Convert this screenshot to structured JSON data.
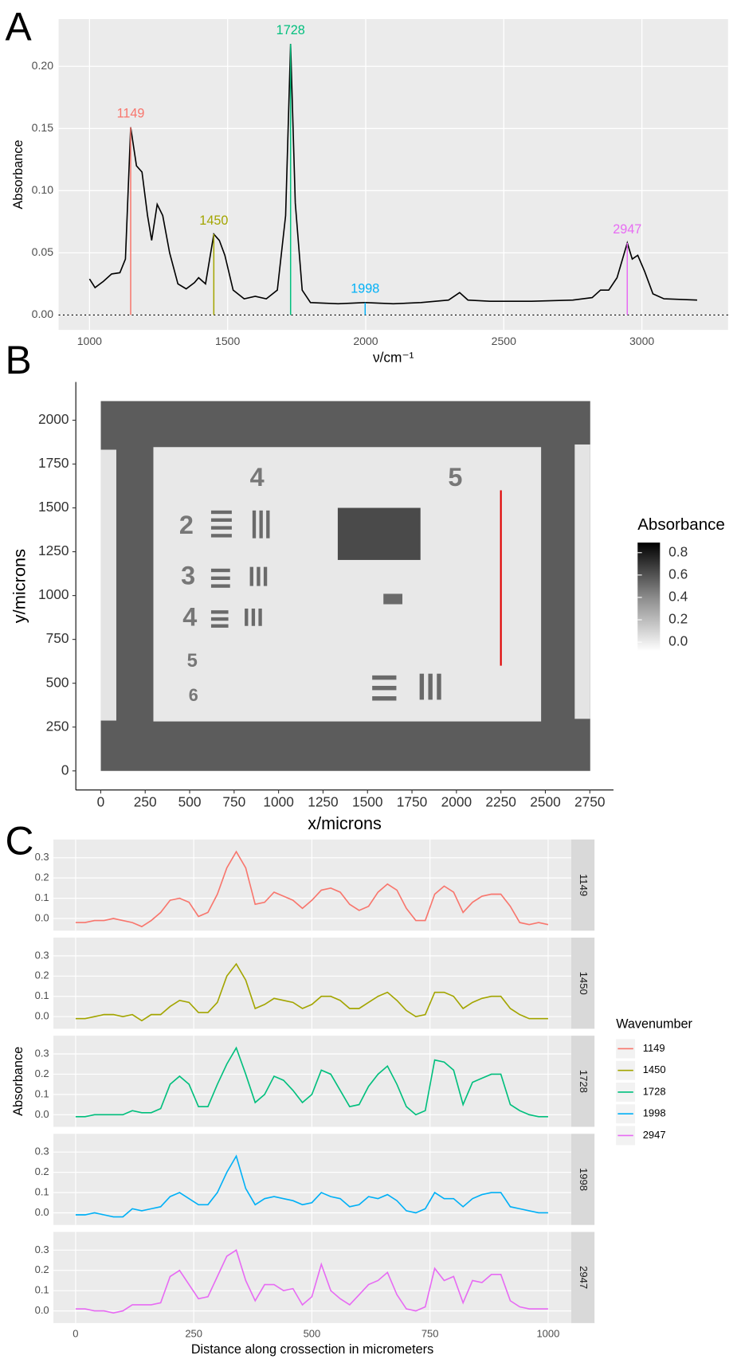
{
  "chart_data": [
    {
      "type": "line",
      "panel_label": "A",
      "x": [
        1000,
        1020,
        1050,
        1080,
        1110,
        1130,
        1149,
        1170,
        1190,
        1210,
        1225,
        1245,
        1265,
        1290,
        1320,
        1350,
        1380,
        1395,
        1420,
        1450,
        1470,
        1490,
        1520,
        1560,
        1600,
        1640,
        1680,
        1710,
        1728,
        1745,
        1770,
        1800,
        1900,
        1998,
        2100,
        2200,
        2300,
        2340,
        2370,
        2450,
        2600,
        2750,
        2820,
        2850,
        2880,
        2910,
        2947,
        2965,
        2985,
        3010,
        3040,
        3080,
        3200
      ],
      "values": [
        0.029,
        0.022,
        0.027,
        0.033,
        0.034,
        0.045,
        0.151,
        0.12,
        0.115,
        0.08,
        0.06,
        0.089,
        0.08,
        0.05,
        0.025,
        0.021,
        0.026,
        0.03,
        0.025,
        0.065,
        0.06,
        0.048,
        0.02,
        0.013,
        0.015,
        0.013,
        0.02,
        0.08,
        0.218,
        0.09,
        0.02,
        0.01,
        0.009,
        0.01,
        0.009,
        0.01,
        0.012,
        0.018,
        0.012,
        0.011,
        0.011,
        0.012,
        0.014,
        0.02,
        0.02,
        0.03,
        0.058,
        0.045,
        0.048,
        0.035,
        0.017,
        0.013,
        0.012
      ],
      "color": "#000000",
      "xlim": [
        888,
        3312
      ],
      "ylim": [
        -0.012,
        0.238
      ],
      "xticks": [
        1000,
        1500,
        2000,
        2500,
        3000
      ],
      "yticks": [
        {
          "value": 0,
          "label": "0.00"
        },
        {
          "value": 0.05,
          "label": "0.05"
        },
        {
          "value": 0.1,
          "label": "0.10"
        },
        {
          "value": 0.15,
          "label": "0.15"
        },
        {
          "value": 0.2,
          "label": "0.20"
        }
      ],
      "xlabel": "ν/cm⁻¹",
      "ylabel": "Absorbance",
      "grid": true,
      "peaks": [
        {
          "x": 1149,
          "y": 0.151,
          "color": "#f8766d"
        },
        {
          "x": 1450,
          "y": 0.065,
          "color": "#a3a500"
        },
        {
          "x": 1728,
          "y": 0.218,
          "color": "#00bf7d"
        },
        {
          "x": 1998,
          "y": 0.01,
          "color": "#00b0f6"
        },
        {
          "x": 2947,
          "y": 0.058,
          "color": "#e76bf3"
        }
      ]
    },
    {
      "type": "heatmap",
      "panel_label": "B",
      "xlim": [
        -140,
        2883
      ],
      "ylim": [
        -109,
        2218
      ],
      "xticks": [
        0,
        250,
        500,
        750,
        1000,
        1250,
        1500,
        1750,
        2000,
        2250,
        2500,
        2750
      ],
      "yticks": [
        0,
        250,
        500,
        750,
        1000,
        1250,
        1500,
        1750,
        2000
      ],
      "xlabel": "x/microns",
      "ylabel": "y/microns",
      "colorbar": {
        "title": "Absorbance",
        "lim": [
          -0.08,
          0.89
        ],
        "ticks": [
          {
            "value": 0,
            "label": "0.0"
          },
          {
            "value": 0.2,
            "label": "0.2"
          },
          {
            "value": 0.4,
            "label": "0.4"
          },
          {
            "value": 0.6,
            "label": "0.6"
          },
          {
            "value": 0.8,
            "label": "0.8"
          }
        ]
      },
      "transect": {
        "x": 2250,
        "y": [
          600,
          1600
        ],
        "color": "#e00000"
      }
    },
    {
      "type": "line",
      "panel_label": "C",
      "x": [
        0,
        20,
        40,
        60,
        80,
        100,
        120,
        140,
        160,
        180,
        200,
        220,
        240,
        260,
        280,
        300,
        320,
        340,
        360,
        380,
        400,
        420,
        440,
        460,
        480,
        500,
        520,
        540,
        560,
        580,
        600,
        620,
        640,
        660,
        680,
        700,
        720,
        740,
        760,
        780,
        800,
        820,
        840,
        860,
        880,
        900,
        920,
        940,
        960,
        980,
        1000
      ],
      "series": [
        {
          "name": "1149",
          "color": "#f8766d",
          "values": [
            -0.02,
            -0.02,
            -0.01,
            -0.01,
            0,
            -0.01,
            -0.02,
            -0.04,
            -0.01,
            0.03,
            0.09,
            0.1,
            0.08,
            0.01,
            0.03,
            0.12,
            0.25,
            0.33,
            0.25,
            0.07,
            0.08,
            0.13,
            0.11,
            0.09,
            0.05,
            0.09,
            0.14,
            0.15,
            0.13,
            0.07,
            0.04,
            0.06,
            0.13,
            0.17,
            0.14,
            0.05,
            -0.01,
            -0.01,
            0.12,
            0.16,
            0.13,
            0.03,
            0.08,
            0.11,
            0.12,
            0.12,
            0.06,
            -0.02,
            -0.03,
            -0.02,
            -0.03
          ]
        },
        {
          "name": "1450",
          "color": "#a3a500",
          "values": [
            -0.01,
            -0.01,
            0,
            0.01,
            0.01,
            0,
            0.01,
            -0.02,
            0.01,
            0.01,
            0.05,
            0.08,
            0.07,
            0.02,
            0.02,
            0.07,
            0.2,
            0.26,
            0.18,
            0.04,
            0.06,
            0.09,
            0.08,
            0.07,
            0.04,
            0.06,
            0.1,
            0.1,
            0.08,
            0.04,
            0.04,
            0.07,
            0.1,
            0.12,
            0.08,
            0.03,
            0,
            0.01,
            0.12,
            0.12,
            0.1,
            0.04,
            0.07,
            0.09,
            0.1,
            0.1,
            0.04,
            0.01,
            -0.01,
            -0.01,
            -0.01
          ]
        },
        {
          "name": "1728",
          "color": "#00bf7d",
          "values": [
            -0.01,
            -0.01,
            0,
            0,
            0,
            0,
            0.02,
            0.01,
            0.01,
            0.03,
            0.15,
            0.19,
            0.15,
            0.04,
            0.04,
            0.15,
            0.25,
            0.33,
            0.2,
            0.06,
            0.1,
            0.19,
            0.17,
            0.12,
            0.06,
            0.1,
            0.22,
            0.2,
            0.12,
            0.04,
            0.05,
            0.14,
            0.2,
            0.24,
            0.15,
            0.04,
            0,
            0.02,
            0.27,
            0.26,
            0.22,
            0.05,
            0.16,
            0.18,
            0.2,
            0.2,
            0.05,
            0.02,
            0,
            -0.01,
            -0.01
          ]
        },
        {
          "name": "1998",
          "color": "#00b0f6",
          "values": [
            -0.01,
            -0.01,
            0,
            -0.01,
            -0.02,
            -0.02,
            0.02,
            0.01,
            0.02,
            0.03,
            0.08,
            0.1,
            0.07,
            0.04,
            0.04,
            0.1,
            0.2,
            0.28,
            0.12,
            0.04,
            0.07,
            0.08,
            0.07,
            0.06,
            0.04,
            0.05,
            0.1,
            0.08,
            0.07,
            0.03,
            0.04,
            0.08,
            0.07,
            0.09,
            0.06,
            0.01,
            0,
            0.02,
            0.1,
            0.07,
            0.07,
            0.03,
            0.07,
            0.09,
            0.1,
            0.1,
            0.03,
            0.02,
            0.01,
            0,
            0
          ]
        },
        {
          "name": "2947",
          "color": "#e76bf3",
          "values": [
            0.01,
            0.01,
            0,
            0,
            -0.01,
            0,
            0.03,
            0.03,
            0.03,
            0.04,
            0.17,
            0.2,
            0.13,
            0.06,
            0.07,
            0.17,
            0.27,
            0.3,
            0.15,
            0.05,
            0.13,
            0.13,
            0.1,
            0.11,
            0.03,
            0.07,
            0.23,
            0.1,
            0.06,
            0.03,
            0.08,
            0.13,
            0.15,
            0.19,
            0.08,
            0.01,
            0,
            0.02,
            0.21,
            0.15,
            0.17,
            0.04,
            0.15,
            0.14,
            0.18,
            0.18,
            0.05,
            0.02,
            0.01,
            0.01,
            0.01
          ]
        }
      ],
      "xlim": [
        -47,
        1049
      ],
      "ylim": [
        -0.06,
        0.39
      ],
      "xticks": [
        0,
        250,
        500,
        750,
        1000
      ],
      "yticks": [
        {
          "value": 0,
          "label": "0.0"
        },
        {
          "value": 0.1,
          "label": "0.1"
        },
        {
          "value": 0.2,
          "label": "0.2"
        },
        {
          "value": 0.3,
          "label": "0.3"
        }
      ],
      "xlabel": "Distance along crossection in micrometers",
      "ylabel": "Absorbance",
      "legend_title": "Wavenumber",
      "legend": "right",
      "grid": true
    }
  ]
}
